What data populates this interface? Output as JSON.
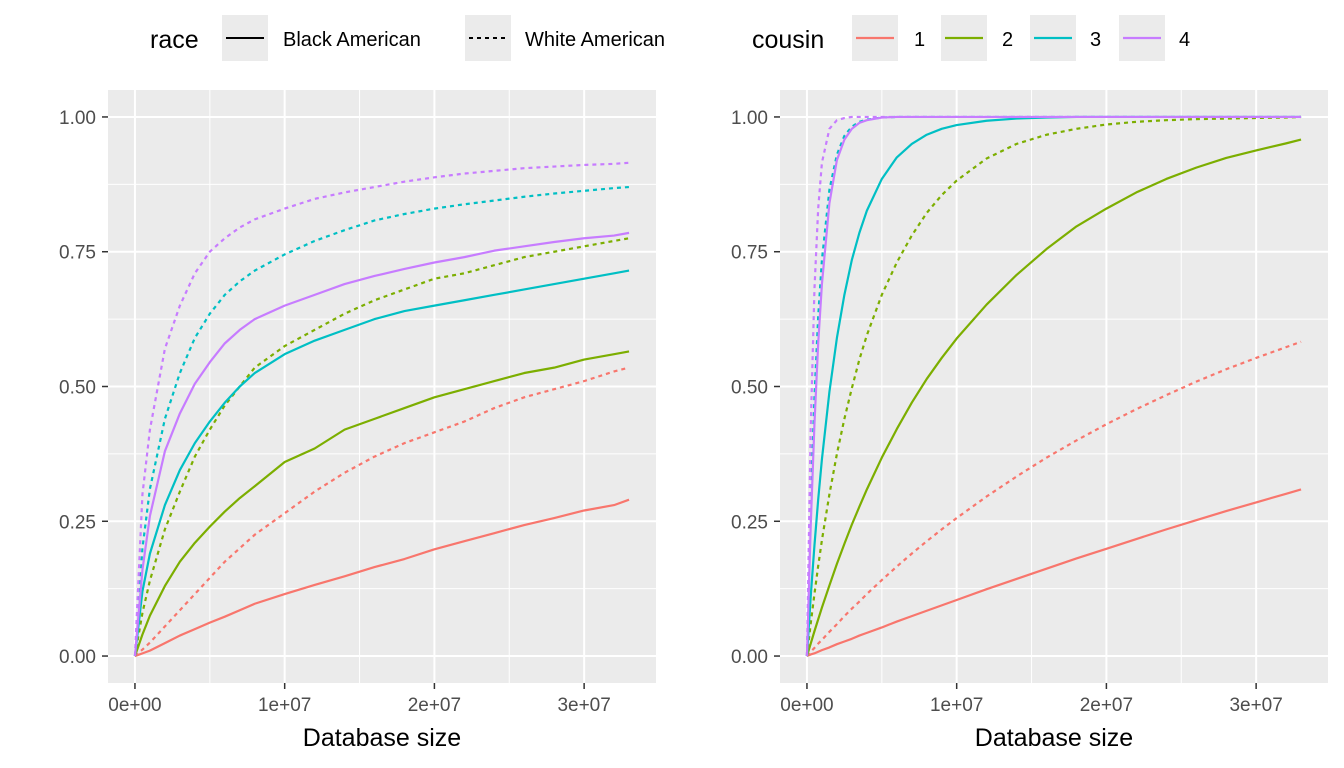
{
  "legend": {
    "race_title": "race",
    "race_items": [
      {
        "label": "Black American",
        "linetype": "solid"
      },
      {
        "label": "White American",
        "linetype": "dashed"
      }
    ],
    "cousin_title": "cousin",
    "cousin_items": [
      {
        "label": "1",
        "color": "#F8766D"
      },
      {
        "label": "2",
        "color": "#7CAE00"
      },
      {
        "label": "3",
        "color": "#00BFC4"
      },
      {
        "label": "4",
        "color": "#C77CFF"
      }
    ]
  },
  "chart_data": [
    {
      "type": "line",
      "panel": "left",
      "xlabel": "Database size",
      "ylabel": "",
      "xlim": [
        -1800000,
        34800000
      ],
      "ylim": [
        -0.05,
        1.05
      ],
      "x_ticks": [
        0,
        10000000,
        20000000,
        30000000
      ],
      "x_tick_labels": [
        "0e+00",
        "1e+07",
        "2e+07",
        "3e+07"
      ],
      "y_ticks": [
        0,
        0.25,
        0.5,
        0.75,
        1.0
      ],
      "y_tick_labels": [
        "0.00",
        "0.25",
        "0.50",
        "0.75",
        "1.00"
      ],
      "x": [
        0,
        500000,
        1000000,
        2000000,
        3000000,
        4000000,
        5000000,
        6000000,
        7000000,
        8000000,
        10000000,
        12000000,
        14000000,
        16000000,
        18000000,
        20000000,
        22000000,
        24000000,
        26000000,
        28000000,
        30000000,
        32000000,
        33000000
      ],
      "series": [
        {
          "name": "cousin 1 - Black American",
          "cousin": "1",
          "race": "Black American",
          "values": [
            0,
            0.005,
            0.01,
            0.024,
            0.038,
            0.05,
            0.062,
            0.073,
            0.085,
            0.097,
            0.115,
            0.132,
            0.148,
            0.165,
            0.18,
            0.198,
            0.213,
            0.228,
            0.243,
            0.256,
            0.27,
            0.28,
            0.29
          ]
        },
        {
          "name": "cousin 1 - White American",
          "cousin": "1",
          "race": "White American",
          "values": [
            0,
            0.012,
            0.025,
            0.055,
            0.085,
            0.115,
            0.145,
            0.175,
            0.2,
            0.225,
            0.265,
            0.305,
            0.34,
            0.37,
            0.395,
            0.415,
            0.435,
            0.46,
            0.48,
            0.495,
            0.51,
            0.528,
            0.535
          ]
        },
        {
          "name": "cousin 2 - Black American",
          "cousin": "2",
          "race": "Black American",
          "values": [
            0,
            0.04,
            0.075,
            0.13,
            0.175,
            0.21,
            0.24,
            0.268,
            0.293,
            0.315,
            0.36,
            0.385,
            0.42,
            0.44,
            0.46,
            0.48,
            0.495,
            0.51,
            0.525,
            0.535,
            0.55,
            0.56,
            0.565
          ]
        },
        {
          "name": "cousin 2 - White American",
          "cousin": "2",
          "race": "White American",
          "values": [
            0,
            0.08,
            0.14,
            0.235,
            0.305,
            0.37,
            0.42,
            0.465,
            0.5,
            0.535,
            0.575,
            0.605,
            0.635,
            0.66,
            0.68,
            0.7,
            0.71,
            0.725,
            0.74,
            0.75,
            0.76,
            0.77,
            0.775
          ]
        },
        {
          "name": "cousin 3 - Black American",
          "cousin": "3",
          "race": "Black American",
          "values": [
            0,
            0.12,
            0.19,
            0.28,
            0.345,
            0.395,
            0.435,
            0.47,
            0.5,
            0.525,
            0.56,
            0.585,
            0.605,
            0.625,
            0.64,
            0.65,
            0.66,
            0.67,
            0.68,
            0.69,
            0.7,
            0.71,
            0.715
          ]
        },
        {
          "name": "cousin 3 - White American",
          "cousin": "3",
          "race": "White American",
          "values": [
            0,
            0.2,
            0.31,
            0.44,
            0.525,
            0.59,
            0.635,
            0.67,
            0.695,
            0.715,
            0.745,
            0.77,
            0.79,
            0.808,
            0.82,
            0.83,
            0.838,
            0.845,
            0.852,
            0.858,
            0.863,
            0.868,
            0.87
          ]
        },
        {
          "name": "cousin 4 - Black American",
          "cousin": "4",
          "race": "Black American",
          "values": [
            0,
            0.16,
            0.26,
            0.38,
            0.45,
            0.505,
            0.545,
            0.58,
            0.605,
            0.625,
            0.65,
            0.67,
            0.69,
            0.705,
            0.718,
            0.73,
            0.74,
            0.752,
            0.76,
            0.768,
            0.775,
            0.78,
            0.785
          ]
        },
        {
          "name": "cousin 4 - White American",
          "cousin": "4",
          "race": "White American",
          "values": [
            0,
            0.3,
            0.42,
            0.57,
            0.65,
            0.71,
            0.75,
            0.775,
            0.795,
            0.81,
            0.83,
            0.848,
            0.86,
            0.87,
            0.88,
            0.888,
            0.895,
            0.9,
            0.905,
            0.908,
            0.911,
            0.913,
            0.915
          ]
        }
      ]
    },
    {
      "type": "line",
      "panel": "right",
      "xlabel": "Database size",
      "ylabel": "",
      "xlim": [
        -1800000,
        34800000
      ],
      "ylim": [
        -0.05,
        1.05
      ],
      "x_ticks": [
        0,
        10000000,
        20000000,
        30000000
      ],
      "x_tick_labels": [
        "0e+00",
        "1e+07",
        "2e+07",
        "3e+07"
      ],
      "y_ticks": [
        0,
        0.25,
        0.5,
        0.75,
        1.0
      ],
      "y_tick_labels": [
        "0.00",
        "0.25",
        "0.50",
        "0.75",
        "1.00"
      ],
      "x": [
        0,
        250000,
        500000,
        750000,
        1000000,
        1500000,
        2000000,
        2500000,
        3000000,
        3500000,
        4000000,
        5000000,
        6000000,
        7000000,
        8000000,
        9000000,
        10000000,
        12000000,
        14000000,
        16000000,
        18000000,
        20000000,
        22000000,
        24000000,
        26000000,
        28000000,
        30000000,
        32000000,
        33000000
      ],
      "series": [
        {
          "name": "cousin 1 - Black American",
          "cousin": "1",
          "race": "Black American",
          "values": [
            0,
            0.003,
            0.005,
            0.008,
            0.011,
            0.016,
            0.022,
            0.027,
            0.032,
            0.038,
            0.043,
            0.053,
            0.064,
            0.074,
            0.084,
            0.094,
            0.104,
            0.124,
            0.143,
            0.162,
            0.181,
            0.199,
            0.217,
            0.235,
            0.252,
            0.269,
            0.285,
            0.301,
            0.309
          ]
        },
        {
          "name": "cousin 1 - White American",
          "cousin": "1",
          "race": "White American",
          "values": [
            0,
            0.008,
            0.015,
            0.023,
            0.03,
            0.045,
            0.059,
            0.074,
            0.088,
            0.101,
            0.115,
            0.141,
            0.166,
            0.19,
            0.213,
            0.235,
            0.256,
            0.296,
            0.333,
            0.368,
            0.4,
            0.43,
            0.458,
            0.484,
            0.509,
            0.532,
            0.553,
            0.573,
            0.583
          ]
        },
        {
          "name": "cousin 2 - Black American",
          "cousin": "2",
          "race": "Black American",
          "values": [
            0,
            0.023,
            0.046,
            0.068,
            0.09,
            0.131,
            0.171,
            0.208,
            0.244,
            0.277,
            0.309,
            0.368,
            0.421,
            0.47,
            0.514,
            0.553,
            0.589,
            0.652,
            0.707,
            0.755,
            0.797,
            0.83,
            0.86,
            0.885,
            0.906,
            0.924,
            0.938,
            0.951,
            0.958
          ]
        },
        {
          "name": "cousin 2 - White American",
          "cousin": "2",
          "race": "White American",
          "values": [
            0,
            0.06,
            0.115,
            0.167,
            0.215,
            0.3,
            0.375,
            0.44,
            0.497,
            0.55,
            0.595,
            0.67,
            0.73,
            0.78,
            0.822,
            0.855,
            0.882,
            0.923,
            0.95,
            0.967,
            0.978,
            0.986,
            0.991,
            0.994,
            0.996,
            0.997,
            0.998,
            0.999,
            1.0
          ]
        },
        {
          "name": "cousin 3 - Black American",
          "cousin": "3",
          "race": "Black American",
          "values": [
            0,
            0.11,
            0.205,
            0.29,
            0.365,
            0.49,
            0.59,
            0.67,
            0.735,
            0.785,
            0.826,
            0.885,
            0.925,
            0.95,
            0.967,
            0.978,
            0.985,
            0.993,
            0.997,
            0.999,
            1.0,
            1.0,
            1.0,
            1.0,
            1.0,
            1.0,
            1.0,
            1.0,
            1.0
          ]
        },
        {
          "name": "cousin 3 - White American",
          "cousin": "3",
          "race": "White American",
          "values": [
            0,
            0.28,
            0.48,
            0.63,
            0.735,
            0.865,
            0.93,
            0.965,
            0.982,
            0.991,
            0.995,
            0.999,
            1.0,
            1.0,
            1.0,
            1.0,
            1.0,
            1.0,
            1.0,
            1.0,
            1.0,
            1.0,
            1.0,
            1.0,
            1.0,
            1.0,
            1.0,
            1.0,
            1.0
          ]
        },
        {
          "name": "cousin 4 - Black American",
          "cousin": "4",
          "race": "Black American",
          "values": [
            0,
            0.24,
            0.43,
            0.58,
            0.69,
            0.84,
            0.92,
            0.958,
            0.978,
            0.989,
            0.994,
            0.999,
            1.0,
            1.0,
            1.0,
            1.0,
            1.0,
            1.0,
            1.0,
            1.0,
            1.0,
            1.0,
            1.0,
            1.0,
            1.0,
            1.0,
            1.0,
            1.0,
            1.0
          ]
        },
        {
          "name": "cousin 4 - White American",
          "cousin": "4",
          "race": "White American",
          "values": [
            0,
            0.42,
            0.68,
            0.83,
            0.915,
            0.978,
            0.994,
            0.998,
            1.0,
            1.0,
            1.0,
            1.0,
            1.0,
            1.0,
            1.0,
            1.0,
            1.0,
            1.0,
            1.0,
            1.0,
            1.0,
            1.0,
            1.0,
            1.0,
            1.0,
            1.0,
            1.0,
            1.0,
            1.0
          ]
        }
      ]
    }
  ]
}
